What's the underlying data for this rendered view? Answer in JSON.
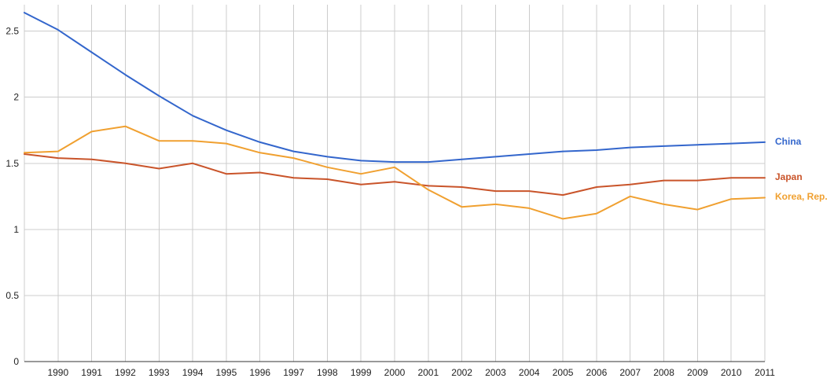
{
  "chart_data": {
    "type": "line",
    "title": "",
    "xlabel": "",
    "ylabel": "",
    "x": [
      1989,
      1990,
      1991,
      1992,
      1993,
      1994,
      1995,
      1996,
      1997,
      1998,
      1999,
      2000,
      2001,
      2002,
      2003,
      2004,
      2005,
      2006,
      2007,
      2008,
      2009,
      2010,
      2011
    ],
    "x_tick_labels": [
      "1990",
      "1991",
      "1992",
      "1993",
      "1994",
      "1995",
      "1996",
      "1997",
      "1998",
      "1999",
      "2000",
      "2001",
      "2002",
      "2003",
      "2004",
      "2005",
      "2006",
      "2007",
      "2008",
      "2009",
      "2010",
      "2011"
    ],
    "xlim": [
      1989,
      2011
    ],
    "ylim": [
      0,
      2.7
    ],
    "y_ticks": [
      0,
      0.5,
      1,
      1.5,
      2,
      2.5
    ],
    "y_tick_labels": [
      "0",
      "0.5",
      "1",
      "1.5",
      "2",
      "2.5"
    ],
    "grid": true,
    "legend": "right",
    "series": [
      {
        "name": "China",
        "color": "#3366cc",
        "values": [
          2.64,
          2.51,
          2.34,
          2.17,
          2.01,
          1.86,
          1.75,
          1.66,
          1.59,
          1.55,
          1.52,
          1.51,
          1.51,
          1.53,
          1.55,
          1.57,
          1.59,
          1.6,
          1.62,
          1.63,
          1.64,
          1.65,
          1.66
        ]
      },
      {
        "name": "Japan",
        "color": "#c9542a",
        "values": [
          1.57,
          1.54,
          1.53,
          1.5,
          1.46,
          1.5,
          1.42,
          1.43,
          1.39,
          1.38,
          1.34,
          1.36,
          1.33,
          1.32,
          1.29,
          1.29,
          1.26,
          1.32,
          1.34,
          1.37,
          1.37,
          1.39,
          1.39
        ]
      },
      {
        "name": "Korea, Rep.",
        "color": "#f0a030",
        "values": [
          1.58,
          1.59,
          1.74,
          1.78,
          1.67,
          1.67,
          1.65,
          1.58,
          1.54,
          1.47,
          1.42,
          1.47,
          1.3,
          1.17,
          1.19,
          1.16,
          1.08,
          1.12,
          1.25,
          1.19,
          1.15,
          1.23,
          1.24
        ]
      }
    ]
  }
}
